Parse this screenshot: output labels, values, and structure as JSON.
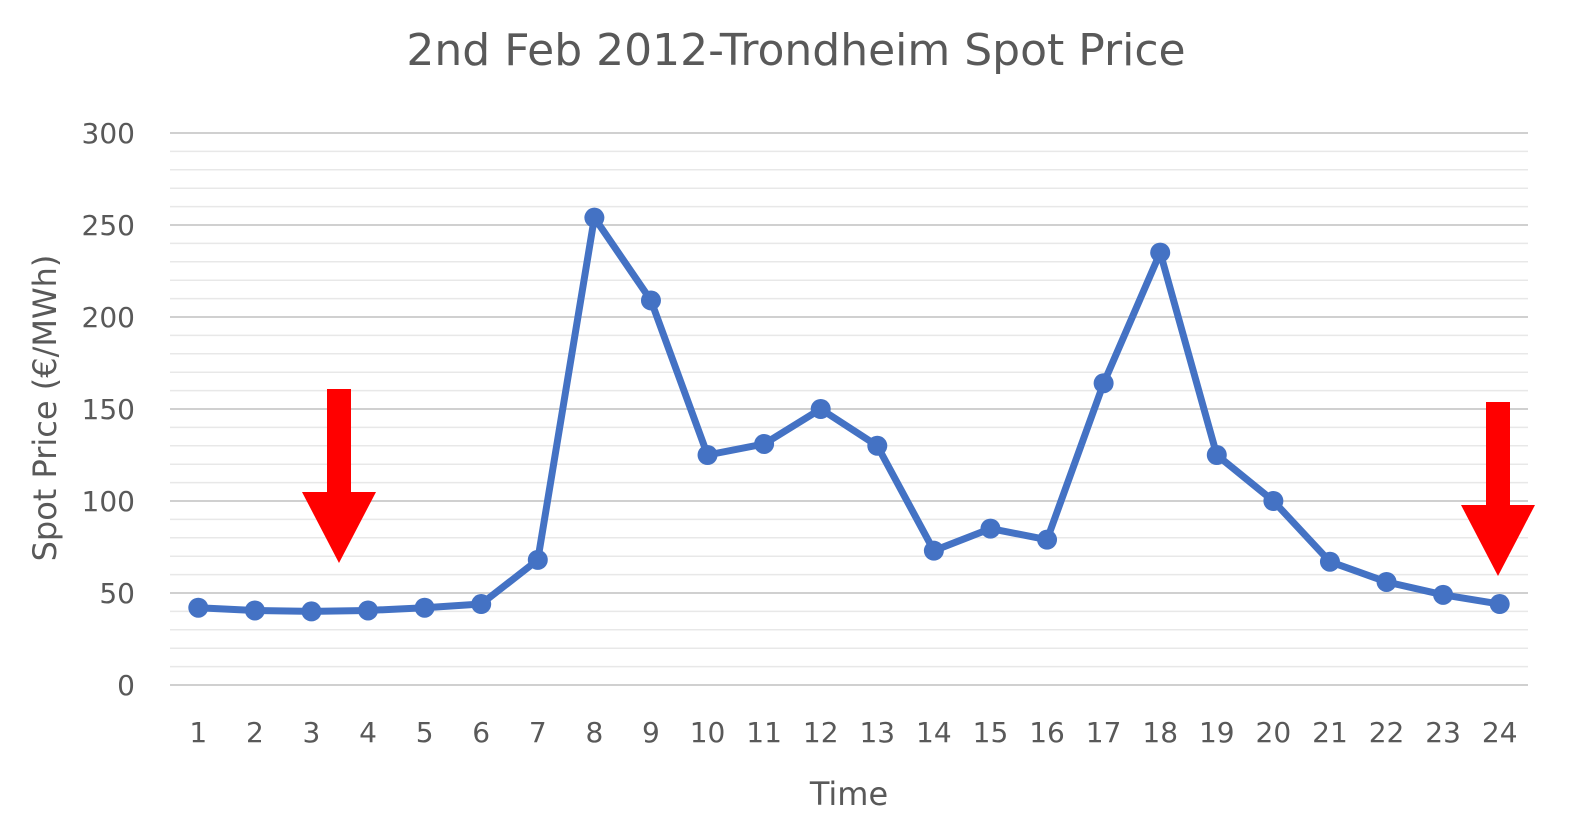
{
  "chart_data": {
    "type": "line",
    "title": "2nd Feb 2012-Trondheim Spot Price",
    "xlabel": "Time",
    "ylabel": "Spot Price (€/MWh)",
    "categories": [
      "1",
      "2",
      "3",
      "4",
      "5",
      "6",
      "7",
      "8",
      "9",
      "10",
      "11",
      "12",
      "13",
      "14",
      "15",
      "16",
      "17",
      "18",
      "19",
      "20",
      "21",
      "22",
      "23",
      "24"
    ],
    "series": [
      {
        "values": [
          42,
          40.5,
          40,
          40.5,
          42,
          44,
          68,
          254,
          209,
          125,
          131,
          150,
          130,
          73,
          85,
          79,
          164,
          235,
          125,
          100,
          67,
          56,
          49,
          44
        ]
      }
    ],
    "ylim": [
      0,
      300
    ],
    "yticks": [
      "0",
      "50",
      "100",
      "150",
      "200",
      "250",
      "300"
    ],
    "grid": "horizontal major and minor",
    "annotations": [
      {
        "type": "red-down-arrow",
        "near_category": "3.5"
      },
      {
        "type": "red-down-arrow",
        "near_category": "24"
      }
    ],
    "colors": {
      "series": "#4472C4",
      "arrows": "#FF0000",
      "grid": "#D9D9D9",
      "text": "#595959"
    }
  }
}
